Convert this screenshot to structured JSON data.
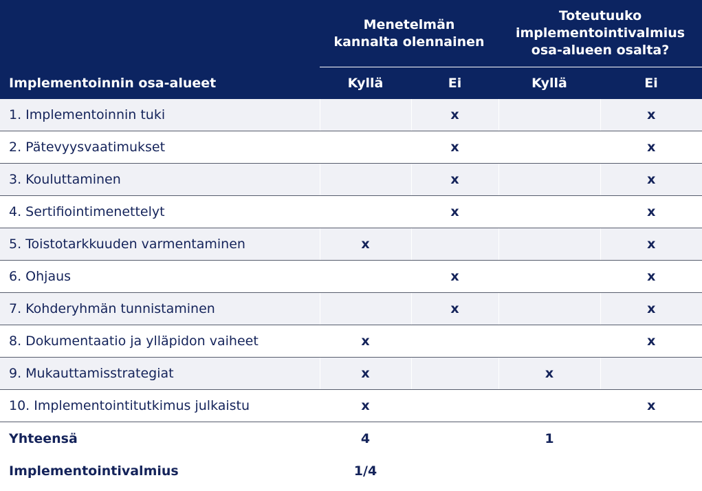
{
  "header": {
    "group1": "Menetelmän kannalta olennainen",
    "group2_line1": "Toteutuuko",
    "group2_line2": "implementointivalmius",
    "group2_line3": "osa-alueen osalta?",
    "group1_line1": "Menetelmän",
    "group1_line2": "kannalta olennainen",
    "area_label": "Implementoinnin osa-alueet",
    "yes": "Kyllä",
    "no": "Ei"
  },
  "rows": [
    {
      "label": "1. Implementoinnin tuki",
      "rel_yes": "",
      "rel_no": "x",
      "ready_yes": "",
      "ready_no": "x"
    },
    {
      "label": "2. Pätevyysvaatimukset",
      "rel_yes": "",
      "rel_no": "x",
      "ready_yes": "",
      "ready_no": "x"
    },
    {
      "label": "3. Kouluttaminen",
      "rel_yes": "",
      "rel_no": "x",
      "ready_yes": "",
      "ready_no": "x"
    },
    {
      "label": "4. Sertifiointimenettelyt",
      "rel_yes": "",
      "rel_no": "x",
      "ready_yes": "",
      "ready_no": "x"
    },
    {
      "label": "5. Toistotarkkuuden varmentaminen",
      "rel_yes": "x",
      "rel_no": "",
      "ready_yes": "",
      "ready_no": "x"
    },
    {
      "label": "6. Ohjaus",
      "rel_yes": "",
      "rel_no": "x",
      "ready_yes": "",
      "ready_no": "x"
    },
    {
      "label": "7. Kohderyhmän tunnistaminen",
      "rel_yes": "",
      "rel_no": "x",
      "ready_yes": "",
      "ready_no": "x"
    },
    {
      "label": "8. Dokumentaatio ja ylläpidon vaiheet",
      "rel_yes": "x",
      "rel_no": "",
      "ready_yes": "",
      "ready_no": "x"
    },
    {
      "label": "9. Mukauttamisstrategiat",
      "rel_yes": "x",
      "rel_no": "",
      "ready_yes": "x",
      "ready_no": ""
    },
    {
      "label": "10. Implementointitutkimus julkaistu",
      "rel_yes": "x",
      "rel_no": "",
      "ready_yes": "",
      "ready_no": "x"
    }
  ],
  "totals": {
    "label": "Yhteensä",
    "rel_yes": "4",
    "ready_yes": "1"
  },
  "readiness": {
    "label": "Implementointivalmius",
    "value": "1/4"
  }
}
